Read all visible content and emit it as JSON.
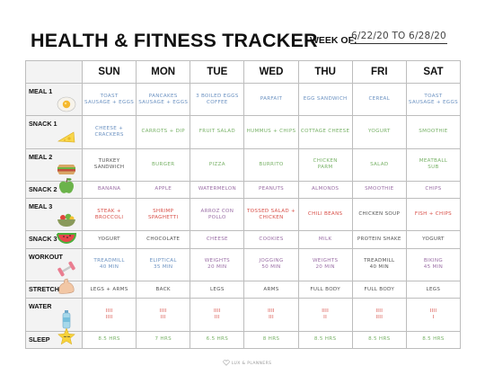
{
  "title": "HEALTH & FITNESS TRACKER",
  "week": {
    "label": "WEEK OF:",
    "value": "6/22/20  TO 6/28/20"
  },
  "days": [
    "SUN",
    "MON",
    "TUE",
    "WED",
    "THU",
    "FRI",
    "SAT"
  ],
  "colors": {
    "blue": "#6d93c2",
    "green": "#79b268",
    "red": "#d8514a",
    "purple": "#9b6fa6",
    "gray": "#555555"
  },
  "rows": [
    {
      "label": "MEAL 1",
      "icon": "fried-egg-icon",
      "cells": [
        {
          "t": "TOAST\nSAUSAGE + EGGS",
          "c": "blue"
        },
        {
          "t": "PANCAKES\nSAUSAGE + EGGS",
          "c": "blue"
        },
        {
          "t": "3 BOILED EGGS\nCOFFEE",
          "c": "blue"
        },
        {
          "t": "PARFAIT",
          "c": "blue"
        },
        {
          "t": "EGG SANDWICH",
          "c": "blue"
        },
        {
          "t": "CEREAL",
          "c": "blue"
        },
        {
          "t": "TOAST\nSAUSAGE + EGGS",
          "c": "blue"
        }
      ]
    },
    {
      "label": "SNACK 1",
      "icon": "cheese-icon",
      "cells": [
        {
          "t": "CHEESE +\nCRACKERS",
          "c": "blue"
        },
        {
          "t": "CARROTS + DIP",
          "c": "green"
        },
        {
          "t": "FRUIT SALAD",
          "c": "green"
        },
        {
          "t": "HUMMUS + CHIPS",
          "c": "green"
        },
        {
          "t": "COTTAGE CHEESE",
          "c": "green"
        },
        {
          "t": "YOGURT",
          "c": "green"
        },
        {
          "t": "SMOOTHIE",
          "c": "green"
        }
      ]
    },
    {
      "label": "MEAL 2",
      "icon": "sandwich-icon",
      "cells": [
        {
          "t": "TURKEY\nSANDWICH",
          "c": "dark"
        },
        {
          "t": "BURGER",
          "c": "green"
        },
        {
          "t": "PIZZA",
          "c": "green"
        },
        {
          "t": "BURRITO",
          "c": "green"
        },
        {
          "t": "CHICKEN\nPARM",
          "c": "green"
        },
        {
          "t": "SALAD",
          "c": "green"
        },
        {
          "t": "MEATBALL\nSUB",
          "c": "green"
        }
      ]
    },
    {
      "label": "SNACK 2",
      "icon": "apple-icon",
      "cells": [
        {
          "t": "BANANA",
          "c": "purple"
        },
        {
          "t": "APPLE",
          "c": "purple"
        },
        {
          "t": "WATERMELON",
          "c": "purple"
        },
        {
          "t": "PEANUTS",
          "c": "purple"
        },
        {
          "t": "ALMONDS",
          "c": "purple"
        },
        {
          "t": "SMOOTHIE",
          "c": "purple"
        },
        {
          "t": "CHIPS",
          "c": "purple"
        }
      ]
    },
    {
      "label": "MEAL 3",
      "icon": "salad-bowl-icon",
      "cells": [
        {
          "t": "STEAK + BROCCOLI",
          "c": "red"
        },
        {
          "t": "SHRIMP\nSPAGHETTI",
          "c": "red"
        },
        {
          "t": "ARROZ CON POLLO",
          "c": "purple"
        },
        {
          "t": "TOSSED SALAD +\nCHICKEN",
          "c": "red"
        },
        {
          "t": "CHILI BEANS",
          "c": "red"
        },
        {
          "t": "CHICKEN SOUP",
          "c": "dark"
        },
        {
          "t": "FISH + CHIPS",
          "c": "red"
        }
      ]
    },
    {
      "label": "SNACK 3",
      "icon": "watermelon-icon",
      "cells": [
        {
          "t": "YOGURT",
          "c": "dark"
        },
        {
          "t": "CHOCOLATE",
          "c": "dark"
        },
        {
          "t": "CHEESE",
          "c": "purple"
        },
        {
          "t": "COOKIES",
          "c": "purple"
        },
        {
          "t": "MILK",
          "c": "purple"
        },
        {
          "t": "PROTEIN SHAKE",
          "c": "dark"
        },
        {
          "t": "YOGURT",
          "c": "dark"
        }
      ]
    },
    {
      "label": "WORKOUT",
      "icon": "dumbbell-icon",
      "cells": [
        {
          "t": "TREADMILL\n40 MIN",
          "c": "blue"
        },
        {
          "t": "ELIPTICAL\n35 MIN",
          "c": "blue"
        },
        {
          "t": "WEIGHTS\n20 MIN",
          "c": "purple"
        },
        {
          "t": "JOGGING\n50 MIN",
          "c": "purple"
        },
        {
          "t": "WEIGHTS\n20 MIN",
          "c": "purple"
        },
        {
          "t": "TREADMILL\n40 MIN",
          "c": "dark"
        },
        {
          "t": "BIKING\n45 MIN",
          "c": "purple"
        }
      ]
    },
    {
      "label": "STRETCH",
      "icon": "flexed-arm-icon",
      "cells": [
        {
          "t": "LEGS + ARMS",
          "c": "dark"
        },
        {
          "t": "BACK",
          "c": "dark"
        },
        {
          "t": "LEGS",
          "c": "dark"
        },
        {
          "t": "ARMS",
          "c": "dark"
        },
        {
          "t": "FULL BODY",
          "c": "dark"
        },
        {
          "t": "FULL BODY",
          "c": "dark"
        },
        {
          "t": "LEGS",
          "c": "dark"
        }
      ]
    },
    {
      "label": "WATER",
      "icon": "water-bottle-icon",
      "cells": [
        {
          "t": "IIII\nIIII",
          "c": "red"
        },
        {
          "t": "IIII\nIII",
          "c": "red"
        },
        {
          "t": "IIII\nIII",
          "c": "red"
        },
        {
          "t": "IIII\nIII",
          "c": "red"
        },
        {
          "t": "IIII\nII",
          "c": "red"
        },
        {
          "t": "IIII\nIIII",
          "c": "red"
        },
        {
          "t": "IIII\nI",
          "c": "red"
        }
      ]
    },
    {
      "label": "SLEEP",
      "icon": "sleeping-star-icon",
      "cells": [
        {
          "t": "8.5 HRS",
          "c": "green"
        },
        {
          "t": "7 HRS",
          "c": "green"
        },
        {
          "t": "6.5 HRS",
          "c": "green"
        },
        {
          "t": "8 HRS",
          "c": "green"
        },
        {
          "t": "8.5 HRS",
          "c": "green"
        },
        {
          "t": "8.5 HRS",
          "c": "green"
        },
        {
          "t": "8.5 HRS",
          "c": "green"
        }
      ]
    }
  ],
  "footer": "LUX & PLANNERS"
}
